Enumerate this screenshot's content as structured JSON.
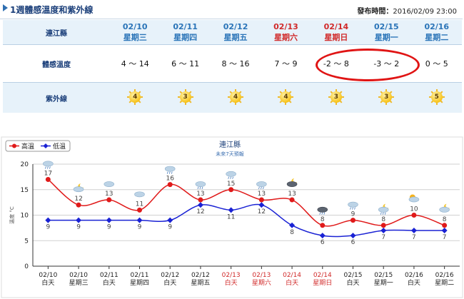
{
  "header": {
    "title": "1週體感溫度和紫外線",
    "issued_label": "發布時間：",
    "issued_value": "2016/02/09 23:00"
  },
  "forecast_table": {
    "location": "連江縣",
    "feel_label": "體感溫度",
    "uv_label": "紫外線",
    "days": [
      {
        "date": "02/10",
        "weekday": "星期三",
        "feel": "4 ～ 14",
        "uv": "4",
        "weekend": false
      },
      {
        "date": "02/11",
        "weekday": "星期四",
        "feel": "6 ～ 11",
        "uv": "3",
        "weekend": false
      },
      {
        "date": "02/12",
        "weekday": "星期五",
        "feel": "8 ～ 16",
        "uv": "4",
        "weekend": false
      },
      {
        "date": "02/13",
        "weekday": "星期六",
        "feel": "7 ～ 9",
        "uv": "4",
        "weekend": true
      },
      {
        "date": "02/14",
        "weekday": "星期日",
        "feel": "-2 ～ 8",
        "uv": "3",
        "weekend": true
      },
      {
        "date": "02/15",
        "weekday": "星期一",
        "feel": "-3 ～ 2",
        "uv": "3",
        "weekend": false
      },
      {
        "date": "02/16",
        "weekday": "星期二",
        "feel": "0 ～ 5",
        "uv": "5",
        "weekend": false
      }
    ],
    "highlight_color": "#e01414"
  },
  "chart_data": {
    "type": "line",
    "title": "連江縣",
    "subtitle": "未來7天預報",
    "ylabel": "溫度 °C",
    "ylim": [
      0,
      20
    ],
    "yticks": [
      0,
      5,
      10,
      15,
      20
    ],
    "grid": true,
    "legend_position": "top-left",
    "categories": [
      {
        "date": "02/10",
        "period": "白天",
        "weekend": false
      },
      {
        "date": "02/10",
        "period": "星期三",
        "weekend": false
      },
      {
        "date": "02/11",
        "period": "白天",
        "weekend": false
      },
      {
        "date": "02/11",
        "period": "星期四",
        "weekend": false
      },
      {
        "date": "02/12",
        "period": "白天",
        "weekend": false
      },
      {
        "date": "02/12",
        "period": "星期五",
        "weekend": false
      },
      {
        "date": "02/13",
        "period": "白天",
        "weekend": true
      },
      {
        "date": "02/13",
        "period": "星期六",
        "weekend": true
      },
      {
        "date": "02/14",
        "period": "白天",
        "weekend": true
      },
      {
        "date": "02/14",
        "period": "星期日",
        "weekend": true
      },
      {
        "date": "02/15",
        "period": "白天",
        "weekend": false
      },
      {
        "date": "02/15",
        "period": "星期一",
        "weekend": false
      },
      {
        "date": "02/16",
        "period": "白天",
        "weekend": false
      },
      {
        "date": "02/16",
        "period": "星期二",
        "weekend": false
      }
    ],
    "series": [
      {
        "name": "高溫",
        "color": "#e01a1a",
        "values": [
          17,
          12,
          13,
          11,
          16,
          13,
          15,
          13,
          13,
          8,
          9,
          8,
          10,
          8
        ]
      },
      {
        "name": "低溫",
        "color": "#1a22d4",
        "values": [
          9,
          9,
          9,
          9,
          9,
          12,
          11,
          12,
          8,
          6,
          6,
          7,
          7,
          7
        ]
      }
    ],
    "weather_icons": [
      "cloudy-rain-icon",
      "partly-cloudy-night-icon",
      "cloudy-icon",
      "cloudy-icon",
      "thunder-rain-icon",
      "cloudy-rain-icon",
      "cloudy-rain-icon",
      "cloudy-rain-icon",
      "dark-cloud-night-icon",
      "dark-cloud-rain-icon",
      "cloudy-rain-icon",
      "cloudy-rain-night-icon",
      "sunny-cloudy-icon",
      "partly-cloudy-night-icon"
    ],
    "weekend_label_color": "#d12a2a"
  }
}
